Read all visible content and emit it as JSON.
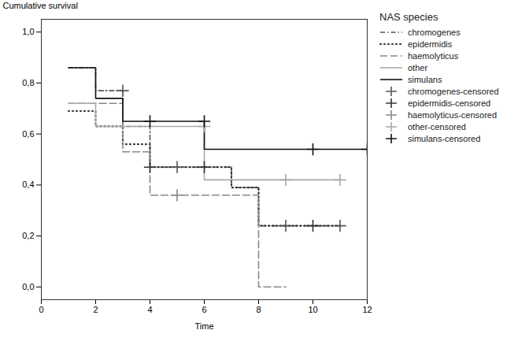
{
  "chart_data": {
    "type": "line",
    "xlabel": "Time",
    "ylabel": "Cumulative survival",
    "legend_title": "NAS species",
    "legend": "right",
    "grid": false,
    "xlim": [
      0,
      12
    ],
    "ylim": [
      -0.05,
      1.05
    ],
    "xticks": [
      0,
      2,
      4,
      6,
      8,
      10,
      12
    ],
    "yticks": [
      {
        "value": 0.0,
        "label": "0,0"
      },
      {
        "value": 0.2,
        "label": "0,2"
      },
      {
        "value": 0.4,
        "label": "0,4"
      },
      {
        "value": 0.6,
        "label": "0,6"
      },
      {
        "value": 0.8,
        "label": "0,8"
      },
      {
        "value": 1.0,
        "label": "1,0"
      }
    ],
    "series": [
      {
        "name": "chromogenes",
        "type": "line",
        "line_style": "dashdot",
        "color": "#555555",
        "x": [
          1,
          2,
          2,
          3,
          3,
          4,
          4,
          5,
          5,
          7,
          7,
          8,
          8,
          11
        ],
        "values": [
          0.86,
          0.86,
          0.77,
          0.77,
          0.63,
          0.63,
          0.47,
          0.47,
          0.47,
          0.47,
          0.39,
          0.39,
          0.24,
          0.24
        ]
      },
      {
        "name": "epidermidis",
        "type": "line",
        "line_style": "dotted",
        "color": "#333333",
        "x": [
          1,
          2,
          2,
          3,
          3,
          4,
          4,
          5,
          5,
          6,
          6,
          7,
          7,
          8,
          8,
          11
        ],
        "values": [
          0.69,
          0.69,
          0.63,
          0.63,
          0.56,
          0.56,
          0.47,
          0.47,
          0.47,
          0.47,
          0.47,
          0.47,
          0.39,
          0.39,
          0.24,
          0.24
        ]
      },
      {
        "name": "haemolyticus",
        "type": "line",
        "line_style": "dashed",
        "color": "#888888",
        "x": [
          1,
          2,
          2,
          3,
          3,
          4,
          4,
          5,
          5,
          8,
          8,
          9
        ],
        "values": [
          0.72,
          0.72,
          0.72,
          0.72,
          0.53,
          0.53,
          0.36,
          0.36,
          0.36,
          0.36,
          0.0,
          0.0
        ]
      },
      {
        "name": "other",
        "type": "line",
        "line_style": "solid",
        "color": "#aaaaaa",
        "x": [
          1,
          2,
          2,
          3,
          3,
          6,
          6,
          8,
          8,
          11
        ],
        "values": [
          0.72,
          0.72,
          0.63,
          0.63,
          0.63,
          0.63,
          0.42,
          0.42,
          0.42,
          0.42
        ]
      },
      {
        "name": "simulans",
        "type": "line",
        "line_style": "solid",
        "color": "#111111",
        "x": [
          1,
          2,
          2,
          3,
          3,
          6,
          6,
          8,
          8,
          12
        ],
        "values": [
          0.86,
          0.86,
          0.74,
          0.74,
          0.65,
          0.65,
          0.54,
          0.54,
          0.54,
          0.54
        ]
      },
      {
        "name": "chromogenes-censored",
        "type": "scatter",
        "marker": "plus",
        "color": "#555555",
        "x": [
          3,
          5,
          9,
          11
        ],
        "values": [
          0.77,
          0.47,
          0.24,
          0.24
        ]
      },
      {
        "name": "epidermidis-censored",
        "type": "scatter",
        "marker": "plus",
        "color": "#333333",
        "x": [
          4,
          6,
          10
        ],
        "values": [
          0.47,
          0.47,
          0.24
        ]
      },
      {
        "name": "haemolyticus-censored",
        "type": "scatter",
        "marker": "plus",
        "color": "#888888",
        "x": [
          5
        ],
        "values": [
          0.36
        ]
      },
      {
        "name": "other-censored",
        "type": "scatter",
        "marker": "plus",
        "color": "#aaaaaa",
        "x": [
          6,
          9,
          11
        ],
        "values": [
          0.63,
          0.42,
          0.42
        ]
      },
      {
        "name": "simulans-censored",
        "type": "scatter",
        "marker": "plus",
        "color": "#111111",
        "x": [
          4,
          6,
          10,
          12
        ],
        "values": [
          0.65,
          0.65,
          0.54,
          0.54
        ]
      }
    ]
  }
}
